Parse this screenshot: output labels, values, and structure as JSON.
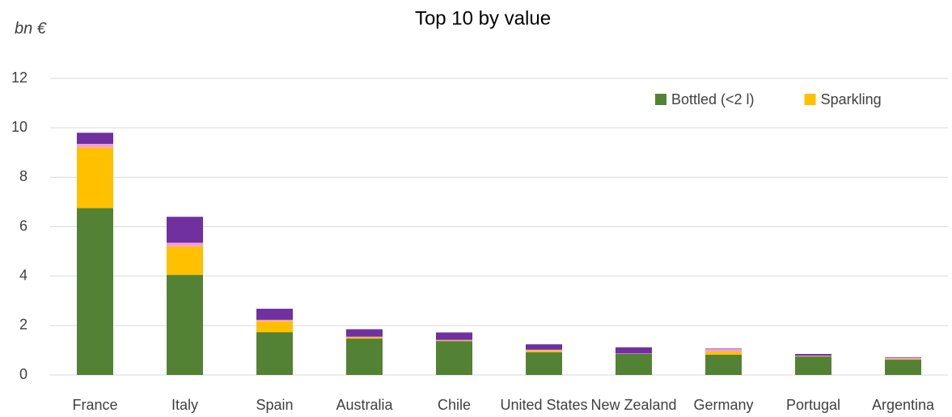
{
  "chart_data": {
    "type": "stacked_bar",
    "title": "Top 10 by value",
    "y_label": "bn €",
    "categories": [
      "France",
      "Italy",
      "Spain",
      "Australia",
      "Chile",
      "United States",
      "New Zealand",
      "Germany",
      "Portugal",
      "Argentina"
    ],
    "series": [
      {
        "name": "Bottled (<2 l)",
        "color": "#548235",
        "values": [
          6.75,
          4.05,
          1.73,
          1.47,
          1.37,
          0.92,
          0.85,
          0.82,
          0.75,
          0.62
        ]
      },
      {
        "name": "Sparkling",
        "color": "#ffc000",
        "values": [
          2.45,
          1.15,
          0.45,
          0.05,
          0.02,
          0.07,
          0.0,
          0.13,
          0.01,
          0.02
        ]
      },
      {
        "color": "#f4a0d0",
        "values": [
          0.15,
          0.15,
          0.05,
          0.03,
          0.03,
          0.03,
          0.02,
          0.1,
          0.02,
          0.06
        ]
      },
      {
        "color": "#7030a0",
        "values": [
          0.45,
          1.05,
          0.45,
          0.3,
          0.3,
          0.22,
          0.25,
          0.02,
          0.07,
          0.02
        ]
      }
    ],
    "ylim": [
      0,
      12
    ],
    "yticks": [
      0,
      2,
      4,
      6,
      8,
      10,
      12
    ],
    "grid": true,
    "legend": "top-right"
  }
}
